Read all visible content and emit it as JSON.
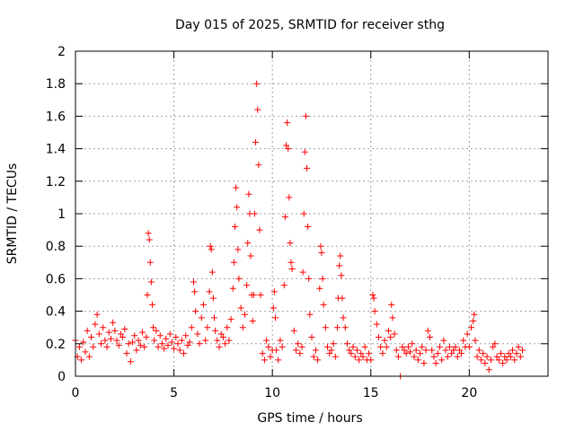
{
  "chart_data": {
    "type": "scatter",
    "title": "Day 015 of 2025, SRMTID for receiver sthg",
    "xlabel": "GPS time / hours",
    "ylabel": "SRMTID / TECUs",
    "xlim": [
      0,
      24
    ],
    "ylim": [
      0,
      2
    ],
    "xticks": [
      0,
      5,
      10,
      15,
      20
    ],
    "xtick_labels": [
      "0",
      "5",
      "10",
      "15",
      "20"
    ],
    "yticks": [
      0,
      0.2,
      0.4,
      0.6,
      0.8,
      1,
      1.2,
      1.4,
      1.6,
      1.8,
      2
    ],
    "ytick_labels": [
      "0",
      "0.2",
      "0.4",
      "0.6",
      "0.8",
      "1",
      "1.2",
      "1.4",
      "1.6",
      "1.8",
      "2"
    ],
    "grid": true,
    "marker": "+",
    "marker_color": "#ff0000",
    "series": [
      {
        "name": "SRMTID",
        "points": [
          [
            0.0,
            0.22
          ],
          [
            0.1,
            0.12
          ],
          [
            0.2,
            0.18
          ],
          [
            0.3,
            0.1
          ],
          [
            0.4,
            0.21
          ],
          [
            0.5,
            0.15
          ],
          [
            0.6,
            0.28
          ],
          [
            0.7,
            0.12
          ],
          [
            0.8,
            0.24
          ],
          [
            0.9,
            0.18
          ],
          [
            1.0,
            0.32
          ],
          [
            1.1,
            0.38
          ],
          [
            1.2,
            0.26
          ],
          [
            1.3,
            0.2
          ],
          [
            1.4,
            0.3
          ],
          [
            1.5,
            0.22
          ],
          [
            1.6,
            0.18
          ],
          [
            1.7,
            0.27
          ],
          [
            1.8,
            0.23
          ],
          [
            1.9,
            0.33
          ],
          [
            2.0,
            0.28
          ],
          [
            2.1,
            0.22
          ],
          [
            2.2,
            0.19
          ],
          [
            2.3,
            0.26
          ],
          [
            2.4,
            0.24
          ],
          [
            2.5,
            0.29
          ],
          [
            2.6,
            0.14
          ],
          [
            2.7,
            0.2
          ],
          [
            2.8,
            0.09
          ],
          [
            2.9,
            0.21
          ],
          [
            3.0,
            0.25
          ],
          [
            3.1,
            0.16
          ],
          [
            3.2,
            0.22
          ],
          [
            3.3,
            0.19
          ],
          [
            3.4,
            0.27
          ],
          [
            3.5,
            0.18
          ],
          [
            3.6,
            0.24
          ],
          [
            3.65,
            0.5
          ],
          [
            3.7,
            0.88
          ],
          [
            3.75,
            0.84
          ],
          [
            3.8,
            0.7
          ],
          [
            3.85,
            0.58
          ],
          [
            3.9,
            0.44
          ],
          [
            3.95,
            0.3
          ],
          [
            4.0,
            0.22
          ],
          [
            4.1,
            0.28
          ],
          [
            4.2,
            0.18
          ],
          [
            4.3,
            0.25
          ],
          [
            4.4,
            0.2
          ],
          [
            4.5,
            0.17
          ],
          [
            4.6,
            0.23
          ],
          [
            4.7,
            0.19
          ],
          [
            4.8,
            0.26
          ],
          [
            4.9,
            0.21
          ],
          [
            5.0,
            0.17
          ],
          [
            5.1,
            0.24
          ],
          [
            5.2,
            0.2
          ],
          [
            5.3,
            0.16
          ],
          [
            5.4,
            0.22
          ],
          [
            5.5,
            0.14
          ],
          [
            5.6,
            0.25
          ],
          [
            5.7,
            0.19
          ],
          [
            5.8,
            0.21
          ],
          [
            5.9,
            0.3
          ],
          [
            6.0,
            0.58
          ],
          [
            6.05,
            0.52
          ],
          [
            6.1,
            0.4
          ],
          [
            6.2,
            0.26
          ],
          [
            6.3,
            0.2
          ],
          [
            6.4,
            0.36
          ],
          [
            6.5,
            0.44
          ],
          [
            6.6,
            0.22
          ],
          [
            6.7,
            0.3
          ],
          [
            6.8,
            0.52
          ],
          [
            6.85,
            0.8
          ],
          [
            6.9,
            0.78
          ],
          [
            6.95,
            0.64
          ],
          [
            7.0,
            0.48
          ],
          [
            7.05,
            0.36
          ],
          [
            7.1,
            0.28
          ],
          [
            7.2,
            0.22
          ],
          [
            7.3,
            0.18
          ],
          [
            7.4,
            0.26
          ],
          [
            7.5,
            0.24
          ],
          [
            7.6,
            0.2
          ],
          [
            7.7,
            0.3
          ],
          [
            7.8,
            0.22
          ],
          [
            7.9,
            0.35
          ],
          [
            8.0,
            0.54
          ],
          [
            8.05,
            0.7
          ],
          [
            8.1,
            0.92
          ],
          [
            8.15,
            1.16
          ],
          [
            8.2,
            1.04
          ],
          [
            8.25,
            0.78
          ],
          [
            8.3,
            0.6
          ],
          [
            8.4,
            0.42
          ],
          [
            8.5,
            0.3
          ],
          [
            8.6,
            0.38
          ],
          [
            8.7,
            0.56
          ],
          [
            8.75,
            0.82
          ],
          [
            8.8,
            1.12
          ],
          [
            8.85,
            1.0
          ],
          [
            8.9,
            0.74
          ],
          [
            8.95,
            0.5
          ],
          [
            9.0,
            0.34
          ],
          [
            9.05,
            0.5
          ],
          [
            9.1,
            1.0
          ],
          [
            9.15,
            1.44
          ],
          [
            9.2,
            1.8
          ],
          [
            9.25,
            1.64
          ],
          [
            9.3,
            1.3
          ],
          [
            9.35,
            0.9
          ],
          [
            9.4,
            0.5
          ],
          [
            9.5,
            0.14
          ],
          [
            9.6,
            0.1
          ],
          [
            9.7,
            0.22
          ],
          [
            9.8,
            0.18
          ],
          [
            9.9,
            0.12
          ],
          [
            10.0,
            0.16
          ],
          [
            10.05,
            0.42
          ],
          [
            10.1,
            0.52
          ],
          [
            10.15,
            0.36
          ],
          [
            10.2,
            0.16
          ],
          [
            10.3,
            0.1
          ],
          [
            10.4,
            0.22
          ],
          [
            10.5,
            0.18
          ],
          [
            10.6,
            0.56
          ],
          [
            10.65,
            0.98
          ],
          [
            10.7,
            1.42
          ],
          [
            10.75,
            1.56
          ],
          [
            10.8,
            1.4
          ],
          [
            10.85,
            1.1
          ],
          [
            10.9,
            0.82
          ],
          [
            10.95,
            0.7
          ],
          [
            11.0,
            0.66
          ],
          [
            11.1,
            0.28
          ],
          [
            11.2,
            0.16
          ],
          [
            11.3,
            0.2
          ],
          [
            11.4,
            0.14
          ],
          [
            11.5,
            0.18
          ],
          [
            11.55,
            0.64
          ],
          [
            11.6,
            1.0
          ],
          [
            11.65,
            1.38
          ],
          [
            11.7,
            1.6
          ],
          [
            11.75,
            1.28
          ],
          [
            11.8,
            0.92
          ],
          [
            11.85,
            0.6
          ],
          [
            11.9,
            0.38
          ],
          [
            12.0,
            0.24
          ],
          [
            12.1,
            0.12
          ],
          [
            12.2,
            0.16
          ],
          [
            12.3,
            0.1
          ],
          [
            12.4,
            0.54
          ],
          [
            12.45,
            0.8
          ],
          [
            12.5,
            0.76
          ],
          [
            12.55,
            0.6
          ],
          [
            12.6,
            0.44
          ],
          [
            12.7,
            0.3
          ],
          [
            12.8,
            0.18
          ],
          [
            12.9,
            0.14
          ],
          [
            13.0,
            0.16
          ],
          [
            13.1,
            0.2
          ],
          [
            13.2,
            0.12
          ],
          [
            13.3,
            0.3
          ],
          [
            13.35,
            0.48
          ],
          [
            13.4,
            0.68
          ],
          [
            13.45,
            0.74
          ],
          [
            13.5,
            0.62
          ],
          [
            13.55,
            0.48
          ],
          [
            13.6,
            0.36
          ],
          [
            13.7,
            0.3
          ],
          [
            13.8,
            0.2
          ],
          [
            13.9,
            0.16
          ],
          [
            14.0,
            0.14
          ],
          [
            14.1,
            0.18
          ],
          [
            14.2,
            0.12
          ],
          [
            14.3,
            0.16
          ],
          [
            14.4,
            0.1
          ],
          [
            14.5,
            0.14
          ],
          [
            14.6,
            0.12
          ],
          [
            14.7,
            0.18
          ],
          [
            14.8,
            0.1
          ],
          [
            14.9,
            0.14
          ],
          [
            15.0,
            0.1
          ],
          [
            15.1,
            0.5
          ],
          [
            15.15,
            0.48
          ],
          [
            15.2,
            0.4
          ],
          [
            15.3,
            0.32
          ],
          [
            15.4,
            0.24
          ],
          [
            15.5,
            0.18
          ],
          [
            15.6,
            0.14
          ],
          [
            15.7,
            0.22
          ],
          [
            15.8,
            0.18
          ],
          [
            15.9,
            0.28
          ],
          [
            16.0,
            0.24
          ],
          [
            16.05,
            0.44
          ],
          [
            16.1,
            0.36
          ],
          [
            16.2,
            0.26
          ],
          [
            16.3,
            0.16
          ],
          [
            16.4,
            0.12
          ],
          [
            16.5,
            0.0
          ],
          [
            16.6,
            0.18
          ],
          [
            16.7,
            0.16
          ],
          [
            16.8,
            0.14
          ],
          [
            16.9,
            0.18
          ],
          [
            17.0,
            0.15
          ],
          [
            17.1,
            0.2
          ],
          [
            17.2,
            0.12
          ],
          [
            17.3,
            0.16
          ],
          [
            17.4,
            0.1
          ],
          [
            17.5,
            0.14
          ],
          [
            17.6,
            0.18
          ],
          [
            17.7,
            0.08
          ],
          [
            17.8,
            0.16
          ],
          [
            17.9,
            0.28
          ],
          [
            18.0,
            0.24
          ],
          [
            18.1,
            0.16
          ],
          [
            18.2,
            0.12
          ],
          [
            18.3,
            0.08
          ],
          [
            18.4,
            0.14
          ],
          [
            18.5,
            0.18
          ],
          [
            18.6,
            0.1
          ],
          [
            18.7,
            0.22
          ],
          [
            18.8,
            0.16
          ],
          [
            18.9,
            0.12
          ],
          [
            19.0,
            0.18
          ],
          [
            19.1,
            0.14
          ],
          [
            19.2,
            0.16
          ],
          [
            19.3,
            0.18
          ],
          [
            19.4,
            0.12
          ],
          [
            19.5,
            0.16
          ],
          [
            19.6,
            0.14
          ],
          [
            19.7,
            0.22
          ],
          [
            19.8,
            0.18
          ],
          [
            19.9,
            0.26
          ],
          [
            20.0,
            0.18
          ],
          [
            20.1,
            0.3
          ],
          [
            20.2,
            0.34
          ],
          [
            20.25,
            0.38
          ],
          [
            20.3,
            0.22
          ],
          [
            20.4,
            0.12
          ],
          [
            20.5,
            0.16
          ],
          [
            20.6,
            0.1
          ],
          [
            20.7,
            0.14
          ],
          [
            20.8,
            0.08
          ],
          [
            20.9,
            0.12
          ],
          [
            21.0,
            0.04
          ],
          [
            21.1,
            0.1
          ],
          [
            21.2,
            0.18
          ],
          [
            21.3,
            0.2
          ],
          [
            21.4,
            0.12
          ],
          [
            21.5,
            0.1
          ],
          [
            21.6,
            0.14
          ],
          [
            21.7,
            0.08
          ],
          [
            21.8,
            0.12
          ],
          [
            21.9,
            0.1
          ],
          [
            22.0,
            0.14
          ],
          [
            22.1,
            0.12
          ],
          [
            22.2,
            0.16
          ],
          [
            22.3,
            0.1
          ],
          [
            22.4,
            0.14
          ],
          [
            22.5,
            0.18
          ],
          [
            22.6,
            0.12
          ],
          [
            22.7,
            0.16
          ]
        ]
      }
    ]
  }
}
